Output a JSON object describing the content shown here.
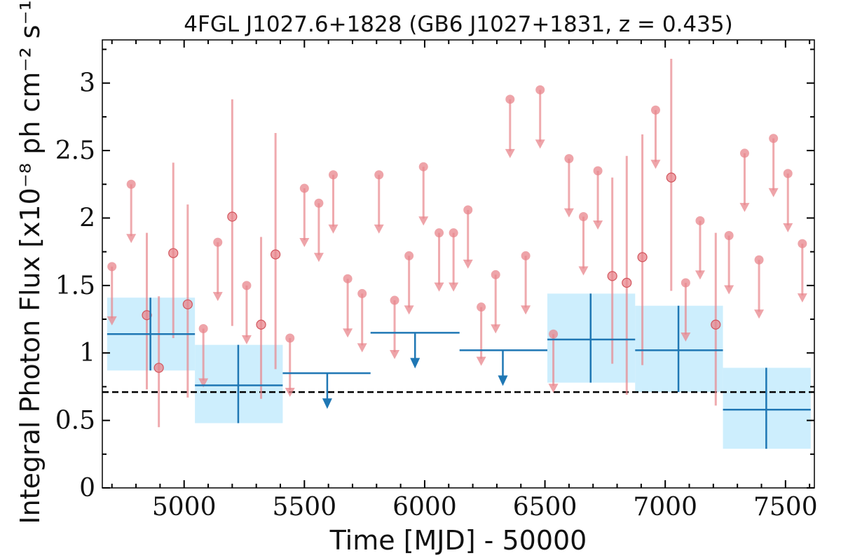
{
  "chart_data": {
    "type": "scatter",
    "title": "4FGL J1027.6+1828 (GB6 J1027+1831, z = 0.435)",
    "xlabel": "Time [MJD] - 50000",
    "ylabel": "Integral Photon Flux [x10⁻⁸ ph cm⁻² s⁻¹]",
    "xlim": [
      4660,
      7620
    ],
    "ylim": [
      0,
      3.32
    ],
    "xticks": [
      5000,
      5500,
      6000,
      6500,
      7000,
      7500
    ],
    "yticks": [
      0,
      0.5,
      1,
      1.5,
      2,
      2.5,
      3
    ],
    "xtick_labels": [
      "5000",
      "5500",
      "6000",
      "6500",
      "7000",
      "7500"
    ],
    "ytick_labels": [
      "0",
      "0.5",
      "1",
      "1.5",
      "2",
      "2.5",
      "3"
    ],
    "grid": false,
    "reference_line": {
      "y": 0.71,
      "style": "dashed",
      "color": "#000000"
    },
    "series": [
      {
        "style": "monthly",
        "color": "#e8868c",
        "detections": [
          {
            "x": 4845,
            "y": 1.28,
            "ylo": 0.73,
            "yhi": 1.89
          },
          {
            "x": 4895,
            "y": 0.89,
            "ylo": 0.45,
            "yhi": 1.42
          },
          {
            "x": 4955,
            "y": 1.74,
            "ylo": 1.11,
            "yhi": 2.41
          },
          {
            "x": 5015,
            "y": 1.36,
            "ylo": 0.67,
            "yhi": 2.1
          },
          {
            "x": 5200,
            "y": 2.01,
            "ylo": 1.2,
            "yhi": 2.88
          },
          {
            "x": 5320,
            "y": 1.21,
            "ylo": 0.66,
            "yhi": 1.86
          },
          {
            "x": 5380,
            "y": 1.73,
            "ylo": 0.88,
            "yhi": 2.63
          },
          {
            "x": 6780,
            "y": 1.57,
            "ylo": 0.92,
            "yhi": 2.3
          },
          {
            "x": 6840,
            "y": 1.52,
            "ylo": 0.69,
            "yhi": 2.46
          },
          {
            "x": 6905,
            "y": 1.71,
            "ylo": 0.91,
            "yhi": 2.62
          },
          {
            "x": 7025,
            "y": 2.3,
            "ylo": 1.46,
            "yhi": 3.18
          },
          {
            "x": 7210,
            "y": 1.21,
            "ylo": 0.61,
            "yhi": 1.89
          }
        ],
        "upper_limits": [
          {
            "x": 4700,
            "y": 1.64
          },
          {
            "x": 4780,
            "y": 2.25
          },
          {
            "x": 5080,
            "y": 1.18
          },
          {
            "x": 5140,
            "y": 1.82
          },
          {
            "x": 5260,
            "y": 1.5
          },
          {
            "x": 5440,
            "y": 1.11
          },
          {
            "x": 5500,
            "y": 2.22
          },
          {
            "x": 5560,
            "y": 2.11
          },
          {
            "x": 5620,
            "y": 2.32
          },
          {
            "x": 5680,
            "y": 1.55
          },
          {
            "x": 5740,
            "y": 1.44
          },
          {
            "x": 5810,
            "y": 2.32
          },
          {
            "x": 5875,
            "y": 1.39
          },
          {
            "x": 5935,
            "y": 1.72
          },
          {
            "x": 5995,
            "y": 2.38
          },
          {
            "x": 6060,
            "y": 1.89
          },
          {
            "x": 6120,
            "y": 1.89
          },
          {
            "x": 6180,
            "y": 2.06
          },
          {
            "x": 6235,
            "y": 1.34
          },
          {
            "x": 6295,
            "y": 1.58
          },
          {
            "x": 6355,
            "y": 2.88
          },
          {
            "x": 6420,
            "y": 1.72
          },
          {
            "x": 6480,
            "y": 2.95
          },
          {
            "x": 6535,
            "y": 1.14
          },
          {
            "x": 6600,
            "y": 2.44
          },
          {
            "x": 6660,
            "y": 2.01
          },
          {
            "x": 6720,
            "y": 2.35
          },
          {
            "x": 6960,
            "y": 2.8
          },
          {
            "x": 7085,
            "y": 1.52
          },
          {
            "x": 7145,
            "y": 1.98
          },
          {
            "x": 7265,
            "y": 1.87
          },
          {
            "x": 7330,
            "y": 2.48
          },
          {
            "x": 7390,
            "y": 1.69
          },
          {
            "x": 7450,
            "y": 2.59
          },
          {
            "x": 7510,
            "y": 2.33
          },
          {
            "x": 7570,
            "y": 1.81
          }
        ]
      },
      {
        "style": "yearly",
        "color": "#1f77b4",
        "band_color": "#cdeefd",
        "detections": [
          {
            "x": 4860,
            "xlo": 4680,
            "xhi": 5045,
            "y": 1.14,
            "ylo": 0.87,
            "yhi": 1.41
          },
          {
            "x": 5225,
            "xlo": 5045,
            "xhi": 5410,
            "y": 0.76,
            "ylo": 0.48,
            "yhi": 1.06
          },
          {
            "x": 6690,
            "xlo": 6510,
            "xhi": 6875,
            "y": 1.1,
            "ylo": 0.78,
            "yhi": 1.44
          },
          {
            "x": 7055,
            "xlo": 6875,
            "xhi": 7240,
            "y": 1.02,
            "ylo": 0.71,
            "yhi": 1.35
          },
          {
            "x": 7420,
            "xlo": 7240,
            "xhi": 7605,
            "y": 0.58,
            "ylo": 0.29,
            "yhi": 0.89
          }
        ],
        "upper_limits": [
          {
            "x": 5595,
            "xlo": 5410,
            "xhi": 5775,
            "y": 0.85
          },
          {
            "x": 5960,
            "xlo": 5775,
            "xhi": 6145,
            "y": 1.15
          },
          {
            "x": 6325,
            "xlo": 6145,
            "xhi": 6510,
            "y": 1.02
          }
        ]
      }
    ]
  }
}
